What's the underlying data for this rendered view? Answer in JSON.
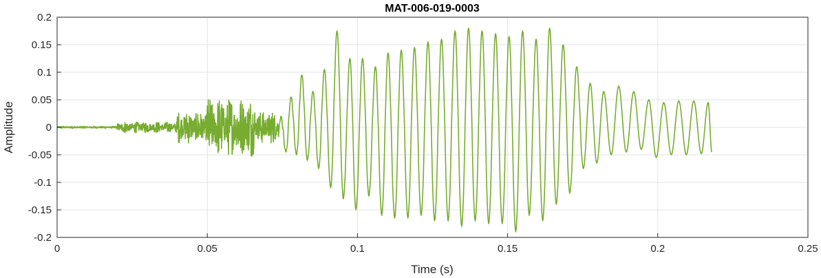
{
  "chart_data": {
    "type": "line",
    "title": "MAT-006-019-0003",
    "xlabel": "Time (s)",
    "ylabel": "Amplitude",
    "xlim": [
      0,
      0.25
    ],
    "ylim": [
      -0.2,
      0.2
    ],
    "xticks": [
      0,
      0.05,
      0.1,
      0.15,
      0.2,
      0.25
    ],
    "xtick_labels": [
      "0",
      "0.05",
      "0.1",
      "0.15",
      "0.2",
      "0.25"
    ],
    "yticks": [
      -0.2,
      -0.15,
      -0.1,
      -0.05,
      0,
      0.05,
      0.1,
      0.15,
      0.2
    ],
    "ytick_labels": [
      "-0.2",
      "-0.15",
      "-0.1",
      "-0.05",
      "0",
      "0.05",
      "0.1",
      "0.15",
      "0.2"
    ],
    "grid": true,
    "line_color": "#77ac30",
    "series": [
      {
        "x_end": 0.218,
        "segments": [
          {
            "t0": 0.0,
            "t1": 0.02,
            "amp": 0.002,
            "kind": "noise"
          },
          {
            "t0": 0.02,
            "t1": 0.04,
            "amp": 0.01,
            "kind": "noise"
          },
          {
            "t0": 0.04,
            "t1": 0.05,
            "amp": 0.03,
            "kind": "noise"
          },
          {
            "t0": 0.05,
            "t1": 0.066,
            "amp": 0.055,
            "kind": "noise"
          },
          {
            "t0": 0.066,
            "t1": 0.074,
            "amp": 0.03,
            "kind": "noise"
          }
        ],
        "peaks": [
          {
            "t": 0.0745,
            "v": 0.02
          },
          {
            "t": 0.0762,
            "v": -0.045
          },
          {
            "t": 0.0779,
            "v": 0.055
          },
          {
            "t": 0.0797,
            "v": -0.05
          },
          {
            "t": 0.0815,
            "v": 0.095
          },
          {
            "t": 0.0833,
            "v": -0.06
          },
          {
            "t": 0.0852,
            "v": 0.065
          },
          {
            "t": 0.0871,
            "v": -0.075
          },
          {
            "t": 0.089,
            "v": 0.105
          },
          {
            "t": 0.0911,
            "v": -0.11
          },
          {
            "t": 0.0932,
            "v": 0.175
          },
          {
            "t": 0.0953,
            "v": -0.13
          },
          {
            "t": 0.0975,
            "v": 0.125
          },
          {
            "t": 0.0995,
            "v": -0.15
          },
          {
            "t": 0.1017,
            "v": 0.125
          },
          {
            "t": 0.1038,
            "v": -0.125
          },
          {
            "t": 0.106,
            "v": 0.11
          },
          {
            "t": 0.1081,
            "v": -0.16
          },
          {
            "t": 0.1102,
            "v": 0.135
          },
          {
            "t": 0.1124,
            "v": -0.165
          },
          {
            "t": 0.1146,
            "v": 0.14
          },
          {
            "t": 0.1168,
            "v": -0.165
          },
          {
            "t": 0.119,
            "v": 0.145
          },
          {
            "t": 0.1212,
            "v": -0.16
          },
          {
            "t": 0.1235,
            "v": 0.155
          },
          {
            "t": 0.1257,
            "v": -0.17
          },
          {
            "t": 0.128,
            "v": 0.16
          },
          {
            "t": 0.1302,
            "v": -0.17
          },
          {
            "t": 0.1325,
            "v": 0.175
          },
          {
            "t": 0.1347,
            "v": -0.18
          },
          {
            "t": 0.137,
            "v": 0.18
          },
          {
            "t": 0.1392,
            "v": -0.17
          },
          {
            "t": 0.1415,
            "v": 0.175
          },
          {
            "t": 0.1437,
            "v": -0.175
          },
          {
            "t": 0.146,
            "v": 0.17
          },
          {
            "t": 0.1482,
            "v": -0.175
          },
          {
            "t": 0.1505,
            "v": 0.165
          },
          {
            "t": 0.1527,
            "v": -0.19
          },
          {
            "t": 0.155,
            "v": 0.175
          },
          {
            "t": 0.1572,
            "v": -0.16
          },
          {
            "t": 0.1595,
            "v": 0.16
          },
          {
            "t": 0.1617,
            "v": -0.17
          },
          {
            "t": 0.164,
            "v": 0.18
          },
          {
            "t": 0.1662,
            "v": -0.14
          },
          {
            "t": 0.1685,
            "v": 0.15
          },
          {
            "t": 0.1707,
            "v": -0.12
          },
          {
            "t": 0.173,
            "v": 0.11
          },
          {
            "t": 0.1752,
            "v": -0.075
          },
          {
            "t": 0.1775,
            "v": 0.08
          },
          {
            "t": 0.1797,
            "v": -0.065
          },
          {
            "t": 0.182,
            "v": 0.065
          },
          {
            "t": 0.1845,
            "v": -0.05
          },
          {
            "t": 0.187,
            "v": 0.075
          },
          {
            "t": 0.1895,
            "v": -0.045
          },
          {
            "t": 0.192,
            "v": 0.065
          },
          {
            "t": 0.1945,
            "v": -0.04
          },
          {
            "t": 0.197,
            "v": 0.05
          },
          {
            "t": 0.1995,
            "v": -0.055
          },
          {
            "t": 0.202,
            "v": 0.045
          },
          {
            "t": 0.2045,
            "v": -0.05
          },
          {
            "t": 0.207,
            "v": 0.048
          },
          {
            "t": 0.2095,
            "v": -0.05
          },
          {
            "t": 0.212,
            "v": 0.048
          },
          {
            "t": 0.2145,
            "v": -0.048
          },
          {
            "t": 0.2168,
            "v": 0.045
          },
          {
            "t": 0.218,
            "v": -0.045
          }
        ]
      }
    ]
  }
}
